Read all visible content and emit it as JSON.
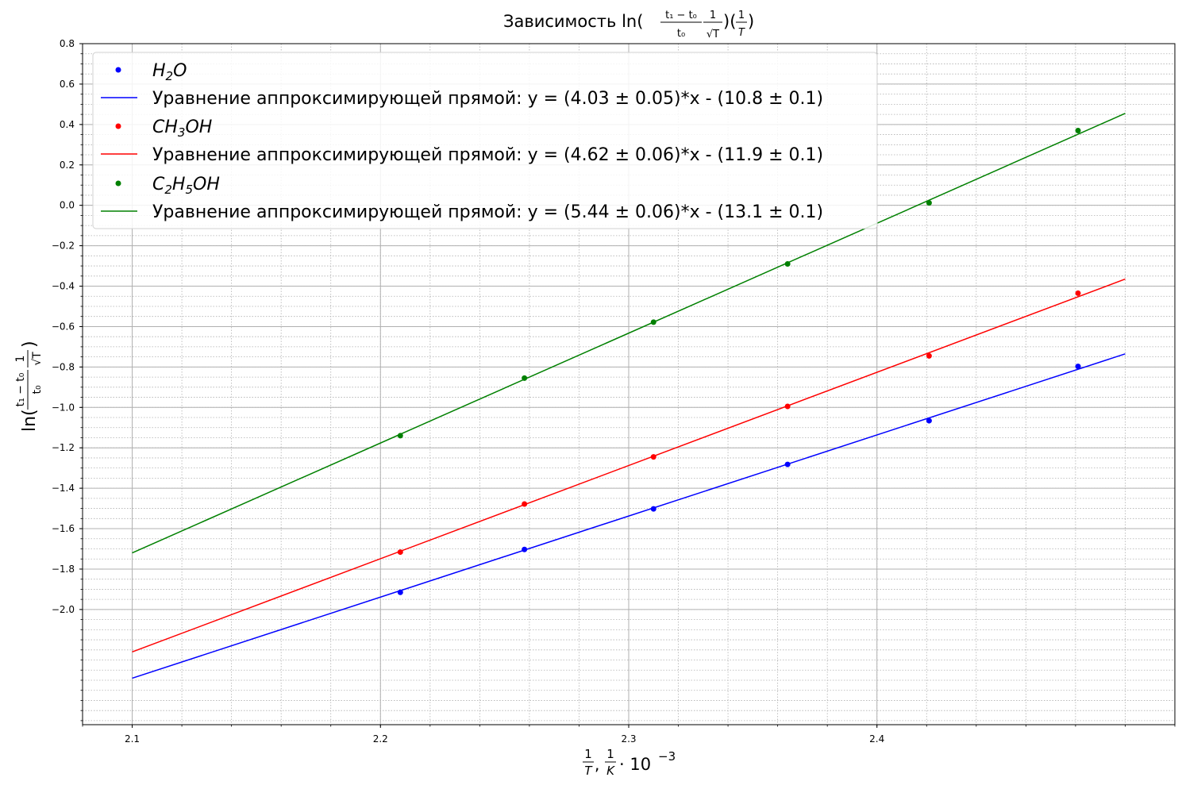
{
  "chart_data": {
    "type": "scatter",
    "title": "Зависимость ln((t₁ − t₀)/t₀ · 1/√T)(1/T)",
    "title_parts": {
      "prefix": "Зависимость ln(",
      "n1": "t₁ − t₀",
      "d1": "t₀",
      "n2": "1",
      "d2": "√T",
      "mid": ")(",
      "n3": "1",
      "d3": "T",
      "suffix": ")"
    },
    "xlabel": "1/T, 1/K · 10⁻³",
    "xlabel_parts": {
      "n1": "1",
      "d1": "T",
      "comma": ",",
      "n2": "1",
      "d2": "K",
      "rest": "· 10",
      "exp": "−3"
    },
    "ylabel": "ln((t₁ − t₀)/t₀ · 1/√T)",
    "ylabel_parts": {
      "prefix": "ln(",
      "n1": "t₁ − t₀",
      "d1": "t₀",
      "n2": "1",
      "d2": "√T",
      "suffix": ")"
    },
    "xlim": [
      2.08,
      2.52
    ],
    "ylim": [
      -2.57,
      0.8
    ],
    "x_ticks": [
      2.1,
      2.2,
      2.3,
      2.4
    ],
    "x_tick_labels": [
      "2.1",
      "2.2",
      "2.3",
      "2.4"
    ],
    "y_ticks": [
      0.8,
      0.6,
      0.4,
      0.2,
      0.0,
      -0.2,
      -0.4,
      -0.6,
      -0.8,
      -1.0,
      -1.2,
      -1.4,
      -1.6,
      -1.8,
      -2.0
    ],
    "y_tick_labels": [
      "0.8",
      "0.6",
      "0.4",
      "0.2",
      "0.0",
      "−0.2",
      "−0.4",
      "−0.6",
      "−0.8",
      "−1.0",
      "−1.2",
      "−1.4",
      "−1.6",
      "−1.8",
      "−2.0"
    ],
    "grid": "major solid + minor dotted",
    "legend_position": "upper-left",
    "series": [
      {
        "name": "H2O",
        "legend_main": "H",
        "legend_sub": "2",
        "legend_tail": "O",
        "color": "#0000ff",
        "points": [
          {
            "x": 2.208,
            "y": -1.915
          },
          {
            "x": 2.258,
            "y": -1.703
          },
          {
            "x": 2.31,
            "y": -1.502
          },
          {
            "x": 2.364,
            "y": -1.282
          },
          {
            "x": 2.421,
            "y": -1.066
          },
          {
            "x": 2.481,
            "y": -0.797
          }
        ],
        "fit_label": "Уравнение аппроксимирующей прямой: y = (4.03 ± 0.05)*x - (10.8 ± 0.1)",
        "fit": {
          "x": [
            2.1,
            2.5
          ],
          "y": [
            -2.34,
            -0.735
          ]
        }
      },
      {
        "name": "CH3OH",
        "legend_main": "CH",
        "legend_sub": "3",
        "legend_tail": "OH",
        "color": "#ff0000",
        "points": [
          {
            "x": 2.208,
            "y": -1.716
          },
          {
            "x": 2.258,
            "y": -1.478
          },
          {
            "x": 2.31,
            "y": -1.245
          },
          {
            "x": 2.364,
            "y": -0.995
          },
          {
            "x": 2.421,
            "y": -0.745
          },
          {
            "x": 2.481,
            "y": -0.435
          }
        ],
        "fit_label": "Уравнение аппроксимирующей прямой: y = (4.62 ± 0.06)*x - (11.9 ± 0.1)",
        "fit": {
          "x": [
            2.1,
            2.5
          ],
          "y": [
            -2.21,
            -0.365
          ]
        }
      },
      {
        "name": "C2H5OH",
        "legend_main": "C",
        "legend_sub": "2",
        "legend_mid": "H",
        "legend_sub2": "5",
        "legend_tail": "OH",
        "color": "#008000",
        "points": [
          {
            "x": 2.208,
            "y": -1.14
          },
          {
            "x": 2.258,
            "y": -0.855
          },
          {
            "x": 2.31,
            "y": -0.578
          },
          {
            "x": 2.364,
            "y": -0.29
          },
          {
            "x": 2.421,
            "y": 0.012
          },
          {
            "x": 2.481,
            "y": 0.37
          }
        ],
        "fit_label": "Уравнение аппроксимирующей прямой: y = (5.44 ± 0.06)*x - (13.1 ± 0.1)",
        "fit": {
          "x": [
            2.1,
            2.5
          ],
          "y": [
            -1.72,
            0.455
          ]
        }
      }
    ]
  }
}
